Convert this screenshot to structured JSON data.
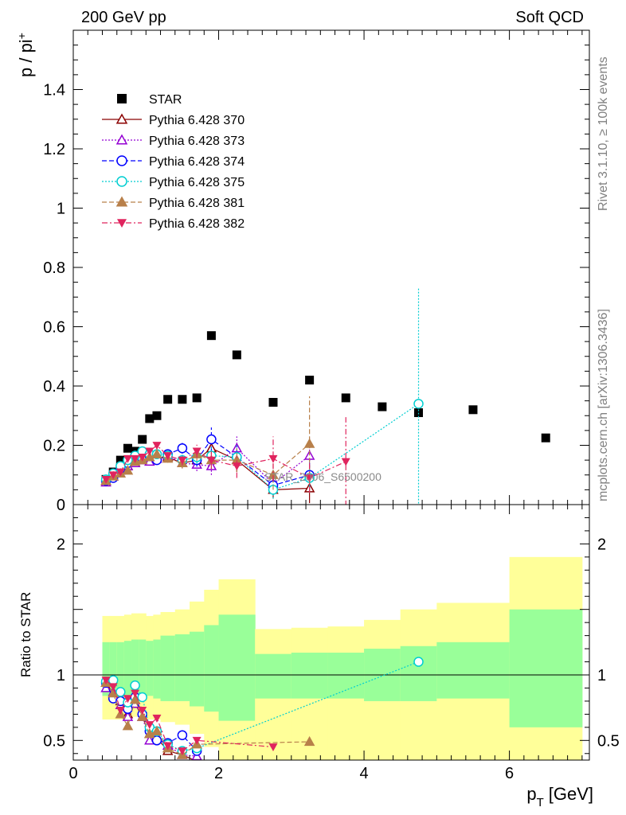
{
  "header": {
    "left": "200 GeV pp",
    "right": "Soft QCD",
    "side_top": "Rivet 3.1.10, ≥ 100k events",
    "side_bottom": "mcplots.cern.ch [arXiv:1306.3436]",
    "watermark": "STAR_2006_S6500200"
  },
  "chart_data": [
    {
      "type": "scatter",
      "ylabel": "p / pi",
      "ylabel_sup": "+",
      "xlim": [
        0,
        7.1
      ],
      "ylim": [
        0,
        1.6
      ],
      "y_ticks": [
        0,
        0.2,
        0.4,
        0.6,
        0.8,
        1,
        1.2,
        1.4
      ],
      "y_tick_labels": [
        "0",
        "0.2",
        "0.4",
        "0.6",
        "0.8",
        "1",
        "1.2",
        "1.4"
      ],
      "legend_position": "top-left",
      "series": [
        {
          "name": "STAR",
          "color": "#000000",
          "marker": "square-filled",
          "line": "none",
          "x": [
            0.45,
            0.55,
            0.65,
            0.75,
            0.85,
            0.95,
            1.05,
            1.15,
            1.3,
            1.5,
            1.7,
            1.9,
            2.25,
            2.75,
            3.25,
            3.75,
            4.25,
            4.75,
            5.5,
            6.5
          ],
          "y": [
            0.085,
            0.11,
            0.15,
            0.19,
            0.18,
            0.22,
            0.29,
            0.3,
            0.355,
            0.355,
            0.36,
            0.57,
            0.505,
            0.345,
            0.42,
            0.36,
            0.33,
            0.31,
            0.32,
            0.225
          ]
        },
        {
          "name": "Pythia 6.428 370",
          "color": "#8b0000",
          "marker": "triangle-open",
          "line": "solid",
          "x": [
            0.45,
            0.55,
            0.65,
            0.75,
            0.85,
            0.95,
            1.05,
            1.15,
            1.3,
            1.5,
            1.7,
            1.9,
            2.25,
            2.75,
            3.25
          ],
          "y": [
            0.08,
            0.095,
            0.12,
            0.13,
            0.14,
            0.15,
            0.16,
            0.155,
            0.16,
            0.14,
            0.15,
            0.19,
            0.15,
            0.05,
            0.055
          ],
          "yerr": [
            0.005,
            0.005,
            0.006,
            0.007,
            0.008,
            0.009,
            0.01,
            0.012,
            0.014,
            0.018,
            0.022,
            0.03,
            0.04,
            0.03,
            0.05
          ]
        },
        {
          "name": "Pythia 6.428 373",
          "color": "#9400d3",
          "marker": "triangle-open",
          "line": "dotted",
          "x": [
            0.45,
            0.55,
            0.65,
            0.75,
            0.85,
            0.95,
            1.05,
            1.15,
            1.3,
            1.5,
            1.7,
            1.9,
            2.25,
            2.75,
            3.25
          ],
          "y": [
            0.075,
            0.095,
            0.115,
            0.13,
            0.14,
            0.15,
            0.145,
            0.155,
            0.165,
            0.14,
            0.135,
            0.13,
            0.19,
            0.07,
            0.165
          ],
          "yerr": [
            0.005,
            0.005,
            0.006,
            0.007,
            0.008,
            0.009,
            0.01,
            0.012,
            0.014,
            0.018,
            0.022,
            0.03,
            0.04,
            0.03,
            0.06
          ]
        },
        {
          "name": "Pythia 6.428 374",
          "color": "#0000ff",
          "marker": "circle-open",
          "line": "dashed",
          "x": [
            0.45,
            0.55,
            0.65,
            0.75,
            0.85,
            0.95,
            1.05,
            1.15,
            1.3,
            1.5,
            1.7,
            1.9,
            2.25,
            2.75,
            3.25
          ],
          "y": [
            0.08,
            0.09,
            0.12,
            0.14,
            0.15,
            0.155,
            0.165,
            0.15,
            0.17,
            0.19,
            0.15,
            0.22,
            0.16,
            0.065,
            0.1
          ],
          "yerr": [
            0.005,
            0.005,
            0.006,
            0.007,
            0.008,
            0.009,
            0.01,
            0.012,
            0.014,
            0.018,
            0.022,
            0.04,
            0.04,
            0.03,
            0.05
          ]
        },
        {
          "name": "Pythia 6.428 375",
          "color": "#00ced1",
          "marker": "circle-open",
          "line": "dotted",
          "x": [
            0.45,
            0.55,
            0.65,
            0.75,
            0.85,
            0.95,
            1.05,
            1.15,
            1.3,
            1.5,
            1.7,
            1.9,
            2.25,
            2.75,
            3.25,
            4.75
          ],
          "y": [
            0.085,
            0.105,
            0.13,
            0.15,
            0.165,
            0.18,
            0.17,
            0.17,
            0.165,
            0.15,
            0.16,
            0.165,
            0.16,
            0.05,
            0.09,
            0.34
          ],
          "yerr": [
            0.005,
            0.005,
            0.006,
            0.007,
            0.008,
            0.009,
            0.01,
            0.012,
            0.014,
            0.018,
            0.022,
            0.03,
            0.04,
            0.03,
            0.05,
            0.39
          ]
        },
        {
          "name": "Pythia 6.428 381",
          "color": "#b8804a",
          "marker": "triangle-filled",
          "line": "dashed",
          "x": [
            0.45,
            0.55,
            0.65,
            0.75,
            0.85,
            0.95,
            1.05,
            1.15,
            1.3,
            1.5,
            1.7,
            1.9,
            2.25,
            2.75,
            3.25
          ],
          "y": [
            0.08,
            0.095,
            0.105,
            0.115,
            0.145,
            0.15,
            0.16,
            0.17,
            0.155,
            0.14,
            0.17,
            0.15,
            0.15,
            0.1,
            0.205
          ],
          "yerr": [
            0.005,
            0.005,
            0.006,
            0.007,
            0.008,
            0.009,
            0.01,
            0.012,
            0.014,
            0.018,
            0.022,
            0.03,
            0.04,
            0.05,
            0.16
          ]
        },
        {
          "name": "Pythia 6.428 382",
          "color": "#e0245e",
          "marker": "triangle-down-filled",
          "line": "dashdot",
          "x": [
            0.45,
            0.55,
            0.65,
            0.75,
            0.85,
            0.95,
            1.05,
            1.15,
            1.3,
            1.5,
            1.7,
            1.9,
            2.25,
            2.75,
            3.25,
            3.75
          ],
          "y": [
            0.085,
            0.1,
            0.11,
            0.155,
            0.155,
            0.16,
            0.18,
            0.2,
            0.165,
            0.15,
            0.18,
            0.15,
            0.13,
            0.155,
            0.09,
            0.145
          ],
          "yerr": [
            0.005,
            0.005,
            0.006,
            0.007,
            0.008,
            0.009,
            0.01,
            0.012,
            0.014,
            0.018,
            0.022,
            0.03,
            0.04,
            0.075,
            0.05,
            0.15
          ]
        }
      ]
    },
    {
      "type": "scatter",
      "ylabel": "Ratio to STAR",
      "xlabel": "p",
      "xlabel_sub": "T",
      "xlabel_unit": "[GeV]",
      "xlim": [
        0,
        7.1
      ],
      "ylim": [
        0.35,
        2.3
      ],
      "x_ticks": [
        0,
        2,
        4,
        6
      ],
      "x_tick_labels": [
        "0",
        "2",
        "4",
        "6"
      ],
      "y_ticks": [
        0.5,
        1,
        2
      ],
      "y_tick_labels": [
        "0.5",
        "1",
        "2"
      ],
      "reference_line": 1,
      "bins": [
        0.4,
        0.5,
        0.6,
        0.7,
        0.8,
        0.9,
        1.0,
        1.1,
        1.2,
        1.4,
        1.6,
        1.8,
        2.0,
        2.5,
        3.0,
        3.5,
        4.0,
        4.5,
        5.0,
        6.0,
        7.0
      ],
      "band_outer": [
        [
          0.66,
          1.45
        ],
        [
          0.66,
          1.45
        ],
        [
          0.66,
          1.45
        ],
        [
          0.67,
          1.46
        ],
        [
          0.68,
          1.47
        ],
        [
          0.68,
          1.47
        ],
        [
          0.66,
          1.45
        ],
        [
          0.66,
          1.46
        ],
        [
          0.64,
          1.48
        ],
        [
          0.62,
          1.5
        ],
        [
          0.55,
          1.56
        ],
        [
          0.45,
          1.65
        ],
        [
          0.2,
          1.73
        ],
        [
          0.15,
          1.35
        ],
        [
          0.15,
          1.36
        ],
        [
          0.15,
          1.37
        ],
        [
          0.16,
          1.42
        ],
        [
          0.2,
          1.5
        ],
        [
          0.35,
          1.55
        ],
        [
          0.34,
          1.9
        ]
      ],
      "band_inner": [
        [
          0.84,
          1.25
        ],
        [
          0.84,
          1.25
        ],
        [
          0.84,
          1.25
        ],
        [
          0.84,
          1.26
        ],
        [
          0.85,
          1.27
        ],
        [
          0.85,
          1.27
        ],
        [
          0.84,
          1.26
        ],
        [
          0.82,
          1.27
        ],
        [
          0.8,
          1.3
        ],
        [
          0.8,
          1.31
        ],
        [
          0.76,
          1.33
        ],
        [
          0.72,
          1.38
        ],
        [
          0.65,
          1.46
        ],
        [
          0.82,
          1.16
        ],
        [
          0.82,
          1.17
        ],
        [
          0.82,
          1.17
        ],
        [
          0.8,
          1.2
        ],
        [
          0.8,
          1.22
        ],
        [
          0.82,
          1.25
        ],
        [
          0.6,
          1.5
        ]
      ],
      "series": [
        {
          "name": "Pythia 6.428 370",
          "color": "#8b0000",
          "marker": "triangle-open",
          "line": "solid",
          "x": [
            0.45,
            0.55,
            0.65,
            0.75,
            0.85,
            0.95,
            1.05,
            1.15,
            1.3,
            1.5,
            1.7
          ],
          "y": [
            0.94,
            0.86,
            0.8,
            0.7,
            0.78,
            0.68,
            0.55,
            0.52,
            0.42,
            0.39,
            0.34
          ]
        },
        {
          "name": "Pythia 6.428 373",
          "color": "#9400d3",
          "marker": "triangle-open",
          "line": "dotted",
          "x": [
            0.45,
            0.55,
            0.65,
            0.75,
            0.85,
            0.95,
            1.05,
            1.15,
            1.3,
            1.5,
            1.7
          ],
          "y": [
            0.9,
            0.87,
            0.77,
            0.68,
            0.78,
            0.68,
            0.5,
            0.52,
            0.46,
            0.39,
            0.38
          ]
        },
        {
          "name": "Pythia 6.428 374",
          "color": "#0000ff",
          "marker": "circle-open",
          "line": "dashed",
          "x": [
            0.45,
            0.55,
            0.65,
            0.75,
            0.85,
            0.95,
            1.05,
            1.15,
            1.3,
            1.5,
            1.7
          ],
          "y": [
            0.94,
            0.82,
            0.8,
            0.74,
            0.83,
            0.7,
            0.57,
            0.5,
            0.48,
            0.54,
            0.42
          ]
        },
        {
          "name": "Pythia 6.428 375",
          "color": "#00ced1",
          "marker": "circle-open",
          "line": "dotted",
          "x": [
            0.45,
            0.55,
            0.65,
            0.75,
            0.85,
            0.95,
            1.05,
            1.15,
            1.3,
            1.5,
            1.7,
            4.75
          ],
          "y": [
            0.95,
            0.96,
            0.87,
            0.79,
            0.92,
            0.83,
            0.6,
            0.57,
            0.47,
            0.42,
            0.44,
            1.1
          ]
        },
        {
          "name": "Pythia 6.428 381",
          "color": "#b8804a",
          "marker": "triangle-filled",
          "line": "dashed",
          "x": [
            0.45,
            0.55,
            0.65,
            0.75,
            0.85,
            0.95,
            1.05,
            1.15,
            1.3,
            1.5,
            1.7,
            3.25
          ],
          "y": [
            0.94,
            0.86,
            0.7,
            0.61,
            0.81,
            0.68,
            0.55,
            0.57,
            0.44,
            0.39,
            0.47,
            0.49
          ]
        },
        {
          "name": "Pythia 6.428 382",
          "color": "#e0245e",
          "marker": "triangle-down-filled",
          "line": "dashdot",
          "x": [
            0.45,
            0.55,
            0.65,
            0.75,
            0.85,
            0.95,
            1.05,
            1.15,
            1.3,
            1.5,
            1.7,
            2.75
          ],
          "y": [
            0.96,
            0.91,
            0.73,
            0.82,
            0.86,
            0.73,
            0.62,
            0.67,
            0.46,
            0.42,
            0.5,
            0.45
          ]
        }
      ]
    }
  ]
}
